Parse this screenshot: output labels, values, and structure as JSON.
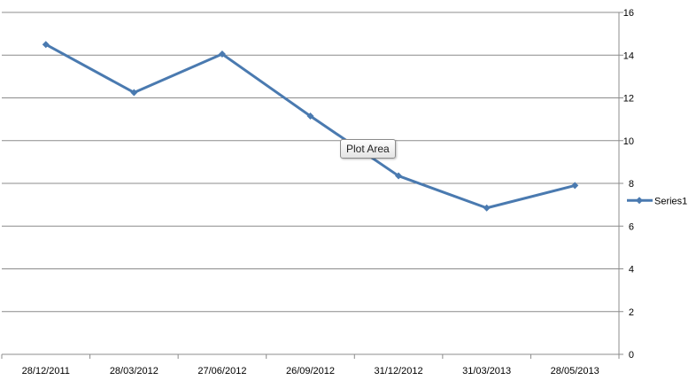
{
  "chart_data": {
    "type": "line",
    "x": [
      "28/12/2011",
      "28/03/2012",
      "27/06/2012",
      "26/09/2012",
      "31/12/2012",
      "31/03/2013",
      "28/05/2013"
    ],
    "series": [
      {
        "name": "Series1",
        "values": [
          14.5,
          12.25,
          14.05,
          11.15,
          8.35,
          6.85,
          7.9
        ],
        "color": "#4a7ab0"
      }
    ],
    "ylim": [
      0,
      16
    ],
    "y_ticks": [
      "0",
      "2",
      "4",
      "6",
      "8",
      "10",
      "12",
      "14",
      "16"
    ],
    "y_axis_side": "right",
    "grid": true,
    "legend_position": "right",
    "marker": "diamond"
  },
  "tooltip": {
    "text": "Plot Area"
  },
  "colors": {
    "gridline": "#8c8c8c",
    "axis": "#8c8c8c",
    "series": "#4a7ab0"
  }
}
